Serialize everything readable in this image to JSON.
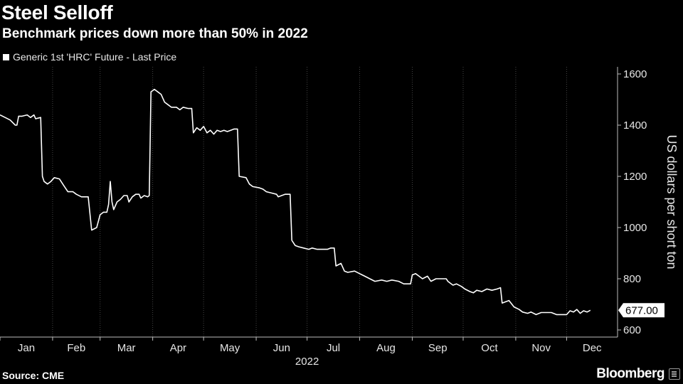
{
  "title": "Steel Selloff",
  "subtitle": "Benchmark prices down more than 50% in 2022",
  "legend": {
    "series_label": "Generic 1st 'HRC' Future - Last Price"
  },
  "footer": {
    "source": "Source: CME",
    "brand": "Bloomberg"
  },
  "colors": {
    "background": "#000000",
    "line": "#ffffff",
    "grid": "#444444",
    "text": "#e6e6e6"
  },
  "chart_data": {
    "type": "line",
    "title": "Steel Selloff",
    "subtitle": "Benchmark prices down more than 50% in 2022",
    "ylabel": "US dollars per short ton",
    "xlabel": "2022",
    "ylim": [
      600,
      1600
    ],
    "xlim": [
      "2022-01-01",
      "2022-12-31"
    ],
    "yticks": [
      600,
      800,
      1000,
      1200,
      1400,
      1600
    ],
    "xtick_labels": [
      "Jan",
      "Feb",
      "Mar",
      "Apr",
      "May",
      "Jun",
      "Jul",
      "Aug",
      "Sep",
      "Oct",
      "Nov",
      "Dec"
    ],
    "year_label": "2022",
    "grid": "vertical dashed at month boundaries",
    "y_axis_position": "right",
    "legend_position": "top-left",
    "last_value_label": "677.00",
    "series": [
      {
        "name": "Generic 1st 'HRC' Future - Last Price",
        "points": [
          [
            "2022-01-01",
            1440
          ],
          [
            "2022-01-04",
            1430
          ],
          [
            "2022-01-07",
            1420
          ],
          [
            "2022-01-10",
            1400
          ],
          [
            "2022-01-11",
            1400
          ],
          [
            "2022-01-12",
            1435
          ],
          [
            "2022-01-14",
            1435
          ],
          [
            "2022-01-17",
            1440
          ],
          [
            "2022-01-19",
            1430
          ],
          [
            "2022-01-21",
            1440
          ],
          [
            "2022-01-22",
            1425
          ],
          [
            "2022-01-25",
            1430
          ],
          [
            "2022-01-26",
            1200
          ],
          [
            "2022-01-27",
            1180
          ],
          [
            "2022-01-29",
            1170
          ],
          [
            "2022-01-31",
            1180
          ],
          [
            "2022-02-02",
            1195
          ],
          [
            "2022-02-05",
            1190
          ],
          [
            "2022-02-08",
            1160
          ],
          [
            "2022-02-10",
            1140
          ],
          [
            "2022-02-13",
            1140
          ],
          [
            "2022-02-15",
            1130
          ],
          [
            "2022-02-18",
            1120
          ],
          [
            "2022-02-22",
            1120
          ],
          [
            "2022-02-24",
            990
          ],
          [
            "2022-02-27",
            1000
          ],
          [
            "2022-03-01",
            1050
          ],
          [
            "2022-03-03",
            1060
          ],
          [
            "2022-03-05",
            1060
          ],
          [
            "2022-03-06",
            1090
          ],
          [
            "2022-03-07",
            1180
          ],
          [
            "2022-03-08",
            1100
          ],
          [
            "2022-03-09",
            1070
          ],
          [
            "2022-03-11",
            1100
          ],
          [
            "2022-03-13",
            1110
          ],
          [
            "2022-03-15",
            1125
          ],
          [
            "2022-03-17",
            1125
          ],
          [
            "2022-03-18",
            1100
          ],
          [
            "2022-03-20",
            1120
          ],
          [
            "2022-03-22",
            1130
          ],
          [
            "2022-03-24",
            1130
          ],
          [
            "2022-03-25",
            1115
          ],
          [
            "2022-03-27",
            1125
          ],
          [
            "2022-03-29",
            1120
          ],
          [
            "2022-03-30",
            1125
          ],
          [
            "2022-03-31",
            1530
          ],
          [
            "2022-04-02",
            1540
          ],
          [
            "2022-04-04",
            1530
          ],
          [
            "2022-04-06",
            1520
          ],
          [
            "2022-04-08",
            1490
          ],
          [
            "2022-04-10",
            1480
          ],
          [
            "2022-04-12",
            1470
          ],
          [
            "2022-04-15",
            1470
          ],
          [
            "2022-04-17",
            1460
          ],
          [
            "2022-04-19",
            1470
          ],
          [
            "2022-04-22",
            1465
          ],
          [
            "2022-04-24",
            1465
          ],
          [
            "2022-04-25",
            1370
          ],
          [
            "2022-04-27",
            1390
          ],
          [
            "2022-04-29",
            1380
          ],
          [
            "2022-05-01",
            1395
          ],
          [
            "2022-05-03",
            1370
          ],
          [
            "2022-05-05",
            1380
          ],
          [
            "2022-05-07",
            1365
          ],
          [
            "2022-05-09",
            1380
          ],
          [
            "2022-05-11",
            1375
          ],
          [
            "2022-05-13",
            1380
          ],
          [
            "2022-05-15",
            1375
          ],
          [
            "2022-05-17",
            1380
          ],
          [
            "2022-05-19",
            1385
          ],
          [
            "2022-05-21",
            1385
          ],
          [
            "2022-05-22",
            1200
          ],
          [
            "2022-05-26",
            1195
          ],
          [
            "2022-05-28",
            1170
          ],
          [
            "2022-05-30",
            1160
          ],
          [
            "2022-06-03",
            1155
          ],
          [
            "2022-06-05",
            1150
          ],
          [
            "2022-06-07",
            1140
          ],
          [
            "2022-06-10",
            1135
          ],
          [
            "2022-06-13",
            1130
          ],
          [
            "2022-06-14",
            1120
          ],
          [
            "2022-06-16",
            1125
          ],
          [
            "2022-06-18",
            1130
          ],
          [
            "2022-06-21",
            1130
          ],
          [
            "2022-06-22",
            950
          ],
          [
            "2022-06-24",
            930
          ],
          [
            "2022-06-26",
            925
          ],
          [
            "2022-06-29",
            920
          ],
          [
            "2022-07-02",
            915
          ],
          [
            "2022-07-04",
            920
          ],
          [
            "2022-07-07",
            915
          ],
          [
            "2022-07-10",
            915
          ],
          [
            "2022-07-13",
            915
          ],
          [
            "2022-07-15",
            920
          ],
          [
            "2022-07-17",
            920
          ],
          [
            "2022-07-18",
            850
          ],
          [
            "2022-07-21",
            860
          ],
          [
            "2022-07-23",
            830
          ],
          [
            "2022-07-25",
            825
          ],
          [
            "2022-07-29",
            830
          ],
          [
            "2022-08-01",
            820
          ],
          [
            "2022-08-04",
            810
          ],
          [
            "2022-08-07",
            800
          ],
          [
            "2022-08-10",
            790
          ],
          [
            "2022-08-14",
            795
          ],
          [
            "2022-08-17",
            790
          ],
          [
            "2022-08-20",
            795
          ],
          [
            "2022-08-24",
            790
          ],
          [
            "2022-08-27",
            780
          ],
          [
            "2022-08-31",
            780
          ],
          [
            "2022-09-01",
            815
          ],
          [
            "2022-09-03",
            820
          ],
          [
            "2022-09-05",
            810
          ],
          [
            "2022-09-07",
            800
          ],
          [
            "2022-09-10",
            810
          ],
          [
            "2022-09-12",
            790
          ],
          [
            "2022-09-15",
            800
          ],
          [
            "2022-09-18",
            800
          ],
          [
            "2022-09-21",
            800
          ],
          [
            "2022-09-22",
            790
          ],
          [
            "2022-09-25",
            775
          ],
          [
            "2022-09-27",
            780
          ],
          [
            "2022-09-30",
            770
          ],
          [
            "2022-10-02",
            760
          ],
          [
            "2022-10-05",
            750
          ],
          [
            "2022-10-07",
            745
          ],
          [
            "2022-10-09",
            755
          ],
          [
            "2022-10-12",
            750
          ],
          [
            "2022-10-15",
            760
          ],
          [
            "2022-10-18",
            755
          ],
          [
            "2022-10-21",
            760
          ],
          [
            "2022-10-23",
            765
          ],
          [
            "2022-10-24",
            705
          ],
          [
            "2022-10-26",
            710
          ],
          [
            "2022-10-28",
            715
          ],
          [
            "2022-10-31",
            690
          ],
          [
            "2022-11-03",
            680
          ],
          [
            "2022-11-05",
            670
          ],
          [
            "2022-11-08",
            665
          ],
          [
            "2022-11-10",
            670
          ],
          [
            "2022-11-13",
            660
          ],
          [
            "2022-11-16",
            668
          ],
          [
            "2022-11-19",
            668
          ],
          [
            "2022-11-22",
            668
          ],
          [
            "2022-11-25",
            660
          ],
          [
            "2022-11-28",
            660
          ],
          [
            "2022-12-01",
            660
          ],
          [
            "2022-12-03",
            675
          ],
          [
            "2022-12-05",
            670
          ],
          [
            "2022-12-07",
            680
          ],
          [
            "2022-12-09",
            665
          ],
          [
            "2022-12-11",
            675
          ],
          [
            "2022-12-13",
            670
          ],
          [
            "2022-12-15",
            677
          ]
        ]
      }
    ]
  }
}
